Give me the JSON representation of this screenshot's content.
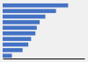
{
  "chart_data": {
    "type": "bar",
    "orientation": "horizontal",
    "categories": [
      null,
      null,
      null,
      null,
      null,
      null,
      null,
      null,
      null,
      null
    ],
    "values": [
      92,
      75,
      60,
      52,
      48,
      46,
      40,
      36,
      28,
      13
    ],
    "color": "#4472c4",
    "xlim": [
      0,
      115
    ],
    "xticks": [],
    "tick_labels": false,
    "grid": false
  }
}
